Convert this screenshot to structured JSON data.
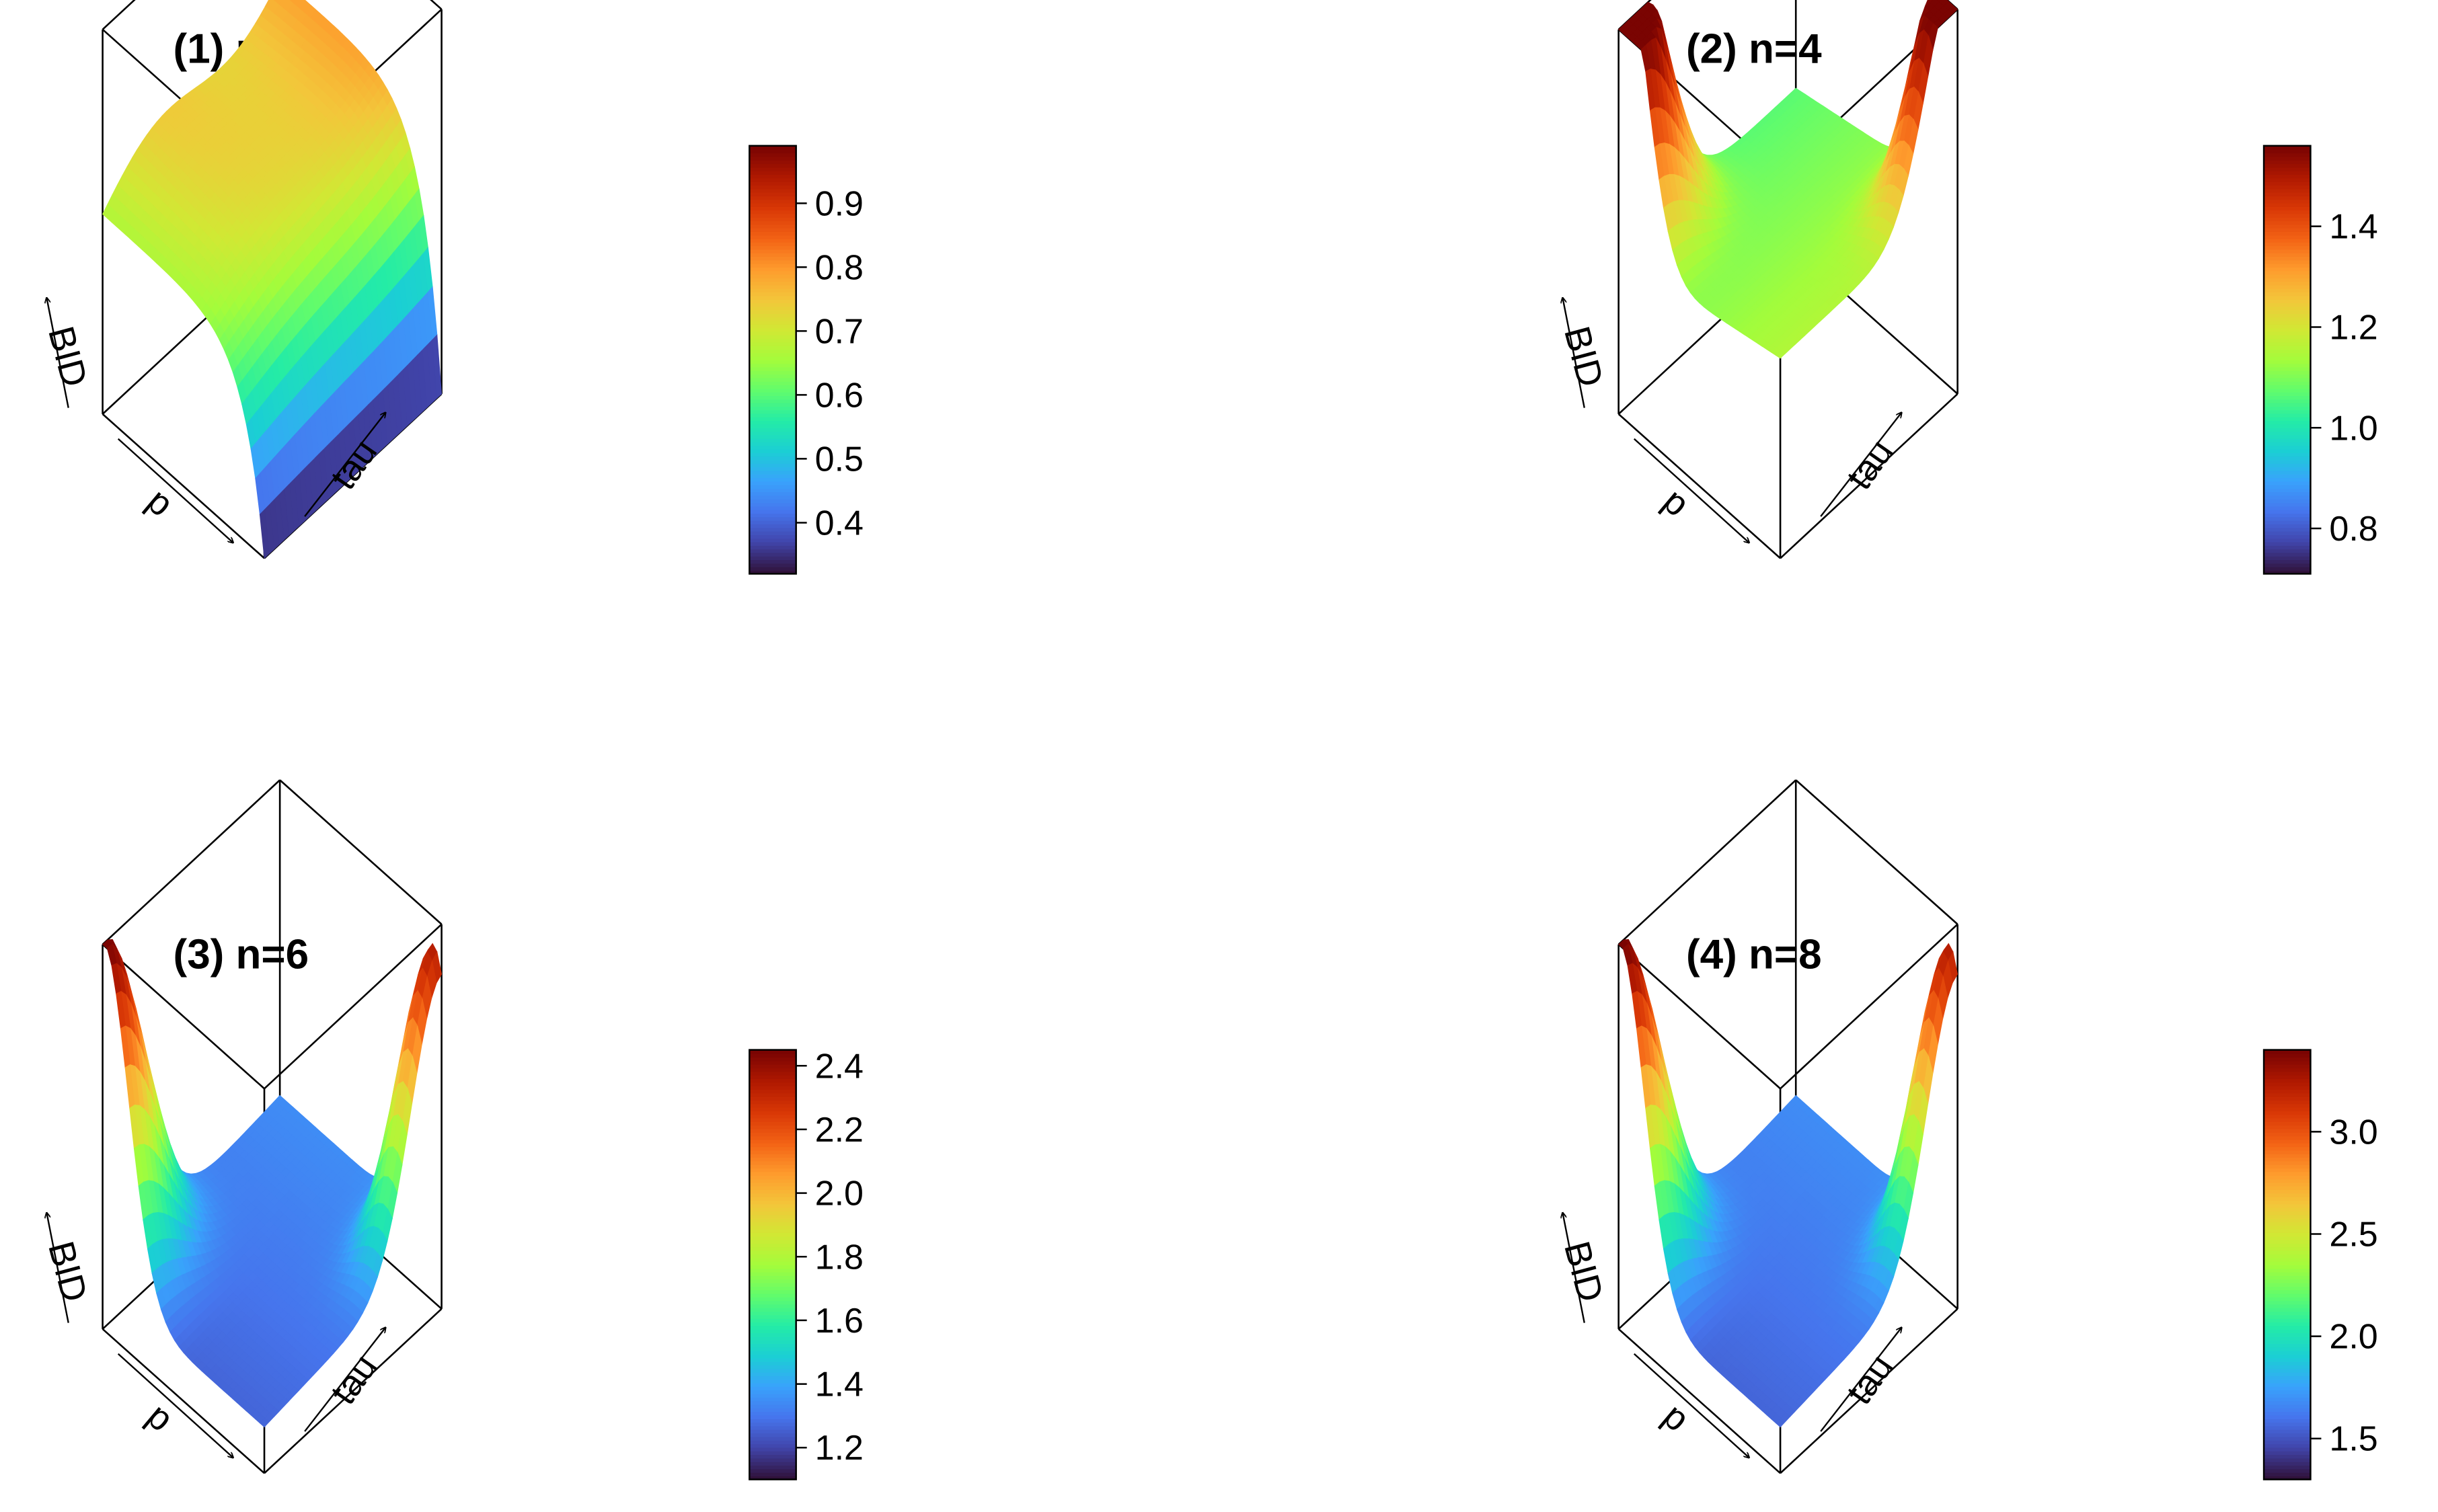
{
  "chart_data": [
    {
      "type": "surface3d",
      "title": "(1) n=2",
      "axis_labels": {
        "x": "p",
        "y": "tau",
        "z": "BID"
      },
      "colormap": [
        "#30123b",
        "#4145ab",
        "#4675ed",
        "#39a2fc",
        "#1bcfd4",
        "#24eca6",
        "#61fc6c",
        "#a4fc3b",
        "#d1e834",
        "#f3c63a",
        "#fe9b2d",
        "#f36315",
        "#d93806",
        "#b11901",
        "#7a0402"
      ],
      "colorbar": {
        "min": 0.32,
        "max": 0.99,
        "ticks": [
          0.4,
          0.5,
          0.6,
          0.7,
          0.8,
          0.9
        ],
        "tick_labels": [
          "0.4",
          "0.5",
          "0.6",
          "0.7",
          "0.8",
          "0.9"
        ]
      },
      "surface_mode": 0
    },
    {
      "type": "surface3d",
      "title": "(2) n=4",
      "axis_labels": {
        "x": "p",
        "y": "tau",
        "z": "BID"
      },
      "colormap": [
        "#30123b",
        "#4145ab",
        "#4675ed",
        "#39a2fc",
        "#1bcfd4",
        "#24eca6",
        "#61fc6c",
        "#a4fc3b",
        "#d1e834",
        "#f3c63a",
        "#fe9b2d",
        "#f36315",
        "#d93806",
        "#b11901",
        "#7a0402"
      ],
      "colorbar": {
        "min": 0.71,
        "max": 1.56,
        "ticks": [
          0.8,
          1.0,
          1.2,
          1.4
        ],
        "tick_labels": [
          "0.8",
          "1.0",
          "1.2",
          "1.4"
        ]
      },
      "surface_mode": 1
    },
    {
      "type": "surface3d",
      "title": "(3) n=6",
      "axis_labels": {
        "x": "p",
        "y": "tau",
        "z": "BID"
      },
      "colormap": [
        "#30123b",
        "#4145ab",
        "#4675ed",
        "#39a2fc",
        "#1bcfd4",
        "#24eca6",
        "#61fc6c",
        "#a4fc3b",
        "#d1e834",
        "#f3c63a",
        "#fe9b2d",
        "#f36315",
        "#d93806",
        "#b11901",
        "#7a0402"
      ],
      "colorbar": {
        "min": 1.1,
        "max": 2.45,
        "ticks": [
          1.2,
          1.4,
          1.6,
          1.8,
          2.0,
          2.2,
          2.4
        ],
        "tick_labels": [
          "1.2",
          "1.4",
          "1.6",
          "1.8",
          "2.0",
          "2.2",
          "2.4"
        ]
      },
      "surface_mode": 2
    },
    {
      "type": "surface3d",
      "title": "(4) n=8",
      "axis_labels": {
        "x": "p",
        "y": "tau",
        "z": "BID"
      },
      "colormap": [
        "#30123b",
        "#4145ab",
        "#4675ed",
        "#39a2fc",
        "#1bcfd4",
        "#24eca6",
        "#61fc6c",
        "#a4fc3b",
        "#d1e834",
        "#f3c63a",
        "#fe9b2d",
        "#f36315",
        "#d93806",
        "#b11901",
        "#7a0402"
      ],
      "colorbar": {
        "min": 1.3,
        "max": 3.4,
        "ticks": [
          1.5,
          2.0,
          2.5,
          3.0
        ],
        "tick_labels": [
          "1.5",
          "2.0",
          "2.5",
          "3.0"
        ]
      },
      "surface_mode": 3
    }
  ]
}
